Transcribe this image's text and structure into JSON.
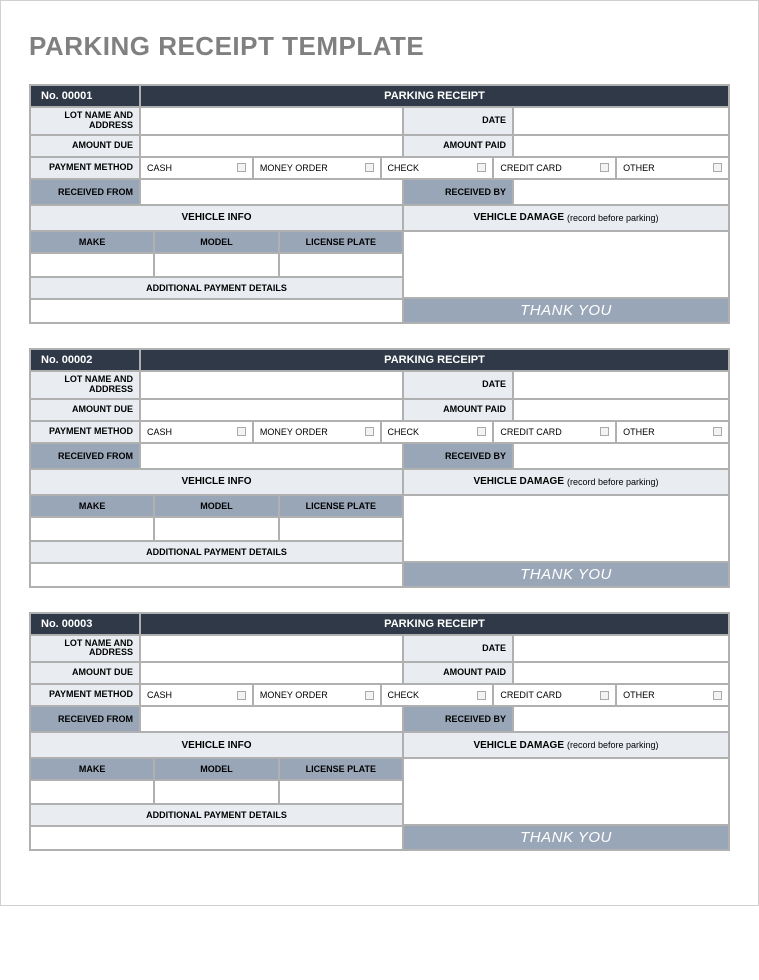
{
  "page_title": "PARKING RECEIPT TEMPLATE",
  "colors": {
    "header_bg": "#2f3947",
    "header_text": "#ffffff",
    "label_bg": "#e9edf2",
    "label_dark_bg": "#99a6b8",
    "border": "#b0b0b0",
    "title_text": "#808080"
  },
  "labels": {
    "receipt_title": "PARKING RECEIPT",
    "lot_name": "LOT NAME AND ADDRESS",
    "date": "DATE",
    "amount_due": "AMOUNT DUE",
    "amount_paid": "AMOUNT PAID",
    "payment_method": "PAYMENT METHOD",
    "received_from": "RECEIVED FROM",
    "received_by": "RECEIVED BY",
    "vehicle_info": "VEHICLE INFO",
    "vehicle_damage": "VEHICLE DAMAGE",
    "vehicle_damage_note": "(record before parking)",
    "make": "MAKE",
    "model": "MODEL",
    "license_plate": "LICENSE PLATE",
    "additional_payment": "ADDITIONAL PAYMENT DETAILS",
    "thank_you": "THANK YOU"
  },
  "payment_options": [
    "CASH",
    "MONEY ORDER",
    "CHECK",
    "CREDIT CARD",
    "OTHER"
  ],
  "receipts": [
    {
      "number_label": "No. 00001"
    },
    {
      "number_label": "No. 00002"
    },
    {
      "number_label": "No. 00003"
    }
  ]
}
